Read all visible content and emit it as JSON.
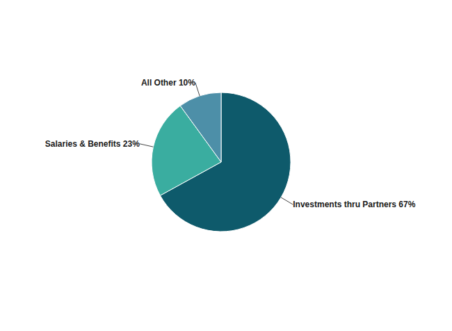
{
  "chart_data": {
    "type": "pie",
    "categories": [
      "Investments thru Partners 67%",
      "Salaries & Benefits 23%",
      "All Other 10%"
    ],
    "values": [
      67,
      23,
      10
    ],
    "colors": [
      "#0e5a6b",
      "#3aada0",
      "#4d8fa8"
    ]
  }
}
